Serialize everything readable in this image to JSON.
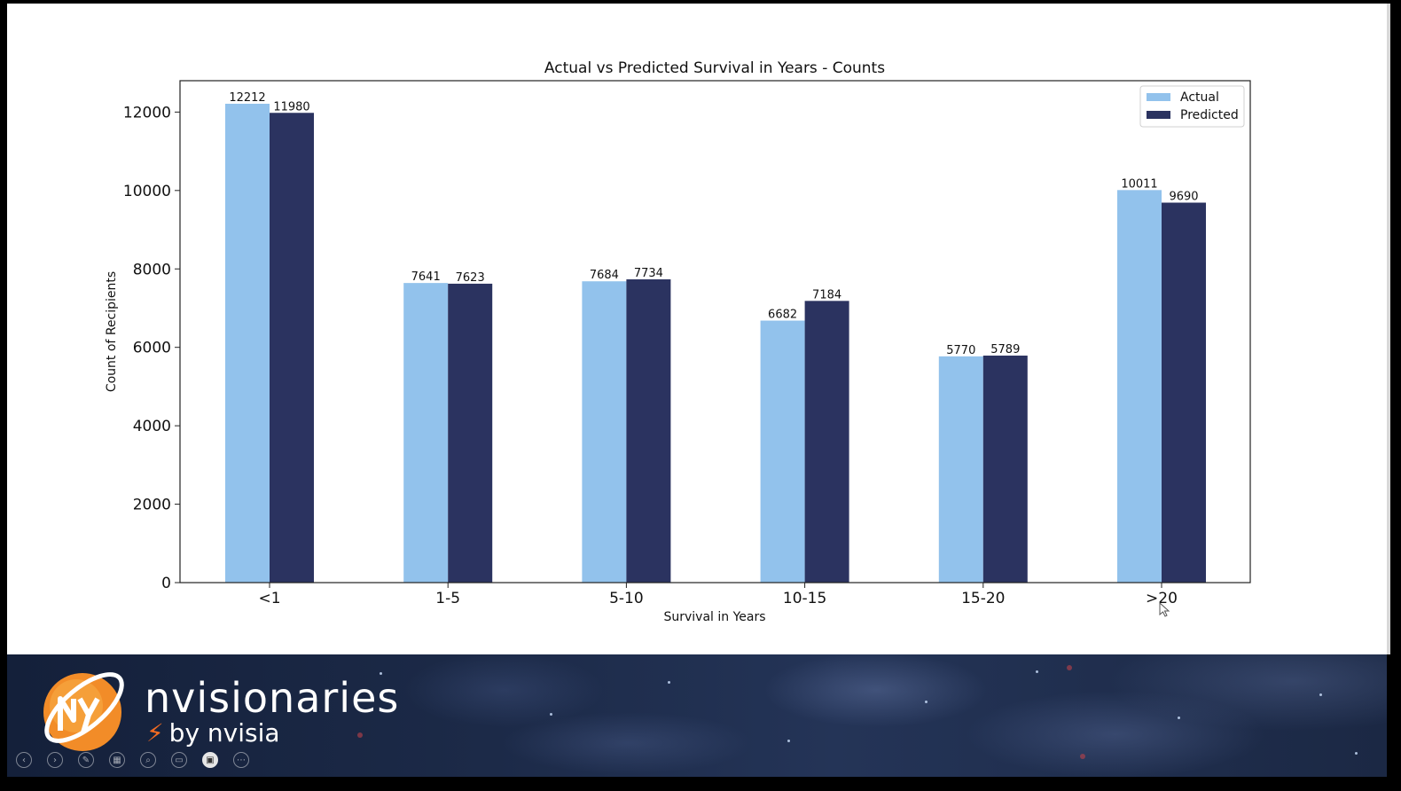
{
  "chart_data": {
    "type": "bar",
    "title": "Actual vs Predicted Survival in Years - Counts",
    "xlabel": "Survival in Years",
    "ylabel": "Count of Recipients",
    "categories": [
      "<1",
      "1-5",
      "5-10",
      "10-15",
      "15-20",
      ">20"
    ],
    "series": [
      {
        "name": "Actual",
        "color": "#92c2ec",
        "values": [
          12212,
          7641,
          7684,
          6682,
          5770,
          10011
        ]
      },
      {
        "name": "Predicted",
        "color": "#2b3360",
        "values": [
          11980,
          7623,
          7734,
          7184,
          5789,
          9690
        ]
      }
    ],
    "ylim": [
      0,
      12800
    ],
    "yticks": [
      0,
      2000,
      4000,
      6000,
      8000,
      10000,
      12000
    ],
    "data_labels": true,
    "grid": false,
    "legend": "top-right"
  },
  "branding": {
    "name": "nvisionaries",
    "sub": "by nvisia",
    "bolt_icon": "lightning-bolt-icon"
  },
  "toolbar": {
    "icons": [
      "previous-icon",
      "next-icon",
      "pen-icon",
      "slides-icon",
      "zoom-icon",
      "subtitles-icon",
      "camera-icon",
      "more-icon"
    ]
  }
}
